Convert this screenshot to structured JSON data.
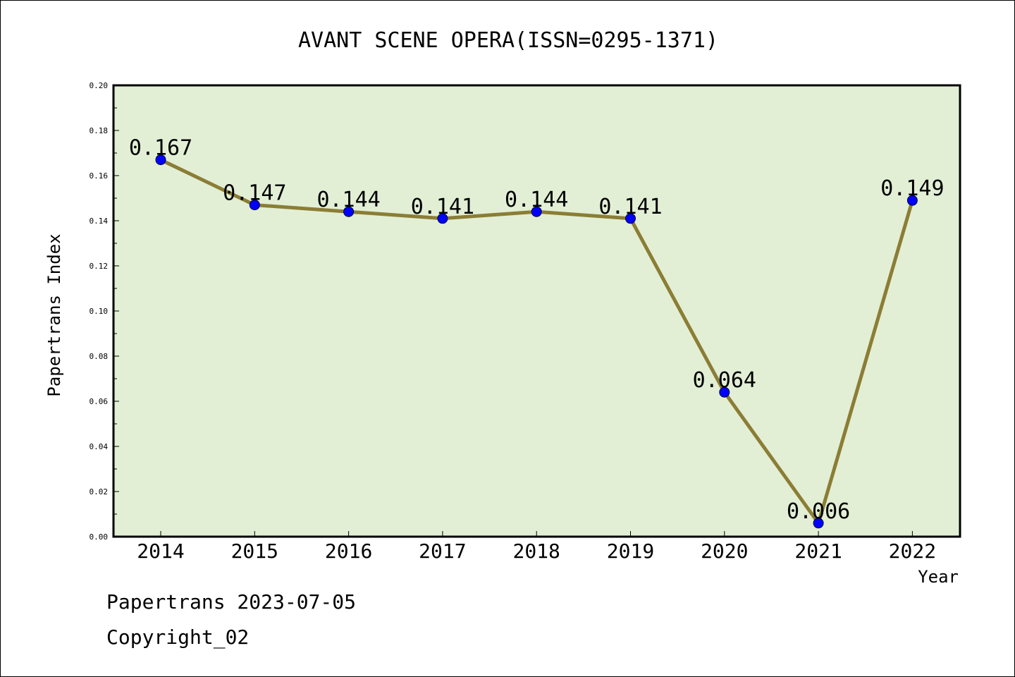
{
  "chart_data": {
    "type": "line",
    "title": "AVANT SCENE OPERA(ISSN=0295-1371)",
    "xlabel": "Year",
    "ylabel": "Papertrans Index",
    "categories": [
      "2014",
      "2015",
      "2016",
      "2017",
      "2018",
      "2019",
      "2020",
      "2021",
      "2022"
    ],
    "values": [
      0.167,
      0.147,
      0.144,
      0.141,
      0.144,
      0.141,
      0.064,
      0.006,
      0.149
    ],
    "data_labels": [
      "0.167",
      "0.147",
      "0.144",
      "0.141",
      "0.144",
      "0.141",
      "0.064",
      "0.006",
      "0.149"
    ],
    "ylim": [
      0,
      0.2
    ],
    "yticks": [
      "0.00",
      "0.02",
      "0.04",
      "0.06",
      "0.08",
      "0.10",
      "0.12",
      "0.14",
      "0.16",
      "0.18",
      "0.20"
    ],
    "grid": false,
    "legend": "none",
    "colors": {
      "line": "#8b7d35",
      "marker": "#0000ff",
      "plot_background": "#e2efd5",
      "axis": "#000000"
    }
  },
  "footer": {
    "line1": "Papertrans 2023-07-05",
    "line2": "Copyright_02"
  }
}
